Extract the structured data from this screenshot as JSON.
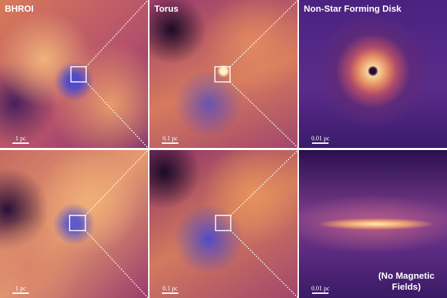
{
  "rows": [
    {
      "panels": [
        {
          "label": "BHROI",
          "scale_bar": "1 pc"
        },
        {
          "label": "Torus",
          "scale_bar": "0.1 pc"
        },
        {
          "label": "Non-Star Forming Disk",
          "scale_bar": "0.01 pc"
        }
      ]
    },
    {
      "panels": [
        {
          "scale_bar": "1 pc"
        },
        {
          "scale_bar": "0.1 pc"
        },
        {
          "scale_bar": "0.01 pc",
          "note": "(No Magnetic Fields)"
        }
      ]
    }
  ]
}
